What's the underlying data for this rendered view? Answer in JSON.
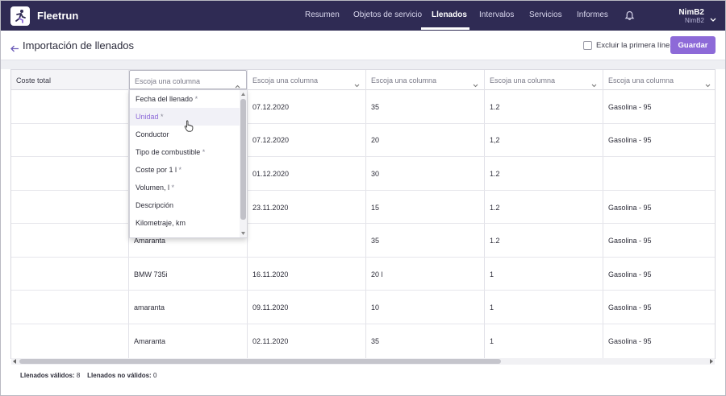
{
  "app": {
    "brand": "Fleetrun",
    "nav": [
      "Resumen",
      "Objetos de servicio",
      "Llenados",
      "Intervalos",
      "Servicios",
      "Informes"
    ],
    "active_nav": "Llenados",
    "user_name": "NimB2",
    "user_sub": "NimB2"
  },
  "header": {
    "title": "Importación de llenados",
    "exclude_label": "Excluir la primera línea",
    "save_label": "Guardar"
  },
  "table": {
    "columns": [
      "Coste total",
      "Escoja una columna",
      "Escoja una columna",
      "Escoja una columna",
      "Escoja una columna",
      "Escoja una columna"
    ],
    "rows": [
      [
        "",
        "",
        "07.12.2020",
        "35",
        "1.2",
        "Gasolina - 95"
      ],
      [
        "",
        "",
        "07.12.2020",
        "20",
        "1,2",
        "Gasolina - 95"
      ],
      [
        "",
        "",
        "01.12.2020",
        "30",
        "1.2",
        ""
      ],
      [
        "",
        "",
        "23.11.2020",
        "15",
        "1.2",
        "Gasolina - 95"
      ],
      [
        "",
        "Amaranta",
        "",
        "35",
        "1.2",
        "Gasolina - 95"
      ],
      [
        "",
        "BMW 735i",
        "16.11.2020",
        "20 l",
        "1",
        "Gasolina - 95"
      ],
      [
        "",
        "amaranta",
        "09.11.2020",
        "10",
        "1",
        "Gasolina - 95"
      ],
      [
        "",
        "Amaranta",
        "02.11.2020",
        "35",
        "1",
        "Gasolina - 95"
      ]
    ]
  },
  "dropdown": {
    "placeholder": "Escoja una columna",
    "options": [
      {
        "label": "Fecha del llenado",
        "required": "*"
      },
      {
        "label": "Unidad",
        "required": "*"
      },
      {
        "label": "Conductor",
        "required": ""
      },
      {
        "label": "Tipo de combustible",
        "required": "*"
      },
      {
        "label": "Coste por 1 l",
        "required": "*"
      },
      {
        "label": "Volumen, l",
        "required": "*"
      },
      {
        "label": "Descripción",
        "required": ""
      },
      {
        "label": "Kilometraje, km",
        "required": ""
      }
    ],
    "hovered": "Unidad"
  },
  "footer": {
    "valid_label": "Llenados válidos:",
    "valid_count": "8",
    "invalid_label": "Llenados no válidos:",
    "invalid_count": "0"
  },
  "colors": {
    "nav_bg": "#2f2b54",
    "accent": "#8d6ad8"
  }
}
